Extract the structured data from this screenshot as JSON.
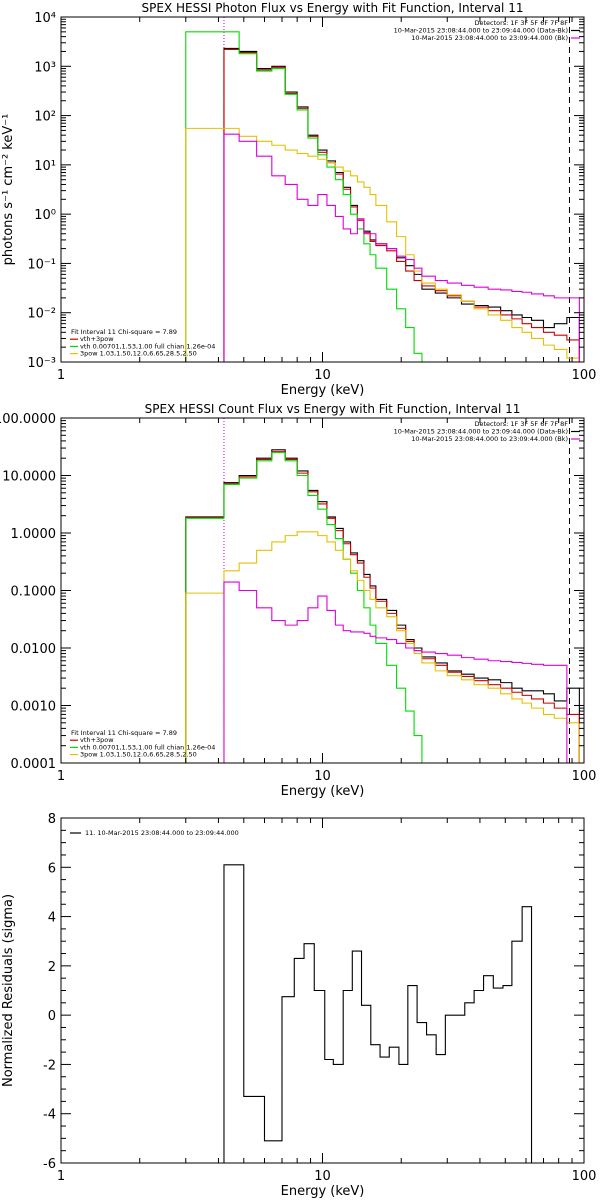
{
  "colors": {
    "total": "#000000",
    "vth_3pow": "#cc0000",
    "vth": "#00dd00",
    "3pow": "#e6c000",
    "background": "#dd00dd"
  },
  "chart_data": [
    {
      "type": "line",
      "title": "SPEX HESSI Photon Flux vs Energy with Fit Function, Interval 11",
      "xlabel": "Energy (keV)",
      "ylabel": "photons s⁻¹ cm⁻² keV⁻¹",
      "xscale": "log",
      "yscale": "log",
      "xlim": [
        1,
        100
      ],
      "ylim": [
        0.001,
        10000
      ],
      "xticks": [
        {
          "v": 1,
          "t": "1"
        },
        {
          "v": 10,
          "t": "10"
        },
        {
          "v": 100,
          "t": "100"
        }
      ],
      "yticks": [
        {
          "v": 0.001,
          "t": "10⁻³"
        },
        {
          "v": 0.01,
          "t": "10⁻²"
        },
        {
          "v": 0.1,
          "t": "10⁻¹"
        },
        {
          "v": 1,
          "t": "10⁰"
        },
        {
          "v": 10,
          "t": "10¹"
        },
        {
          "v": 100,
          "t": "10²"
        },
        {
          "v": 1000,
          "t": "10³"
        },
        {
          "v": 10000,
          "t": "10⁴"
        }
      ],
      "vlines": [
        {
          "x": 4.2,
          "style": "dotted",
          "color": "#000000"
        },
        {
          "x": 4.2,
          "style": "dotted",
          "color": "#dd00dd"
        },
        {
          "x": 88,
          "style": "dashed",
          "color": "#000000"
        }
      ],
      "legend_top": [
        "Detectors: 1F 3F 5F 6F 7F 8F",
        "10-Mar-2015 23:08:44.000 to 23:09:44.000 (Data-Bk)",
        "10-Mar-2015 23:08:44.000 to 23:09:44.000 (Bk)"
      ],
      "legend_bottom": [
        "Fit Interval 11   Chi-square = 7.89",
        "vth+3pow",
        "vth 0.00701,1.53,1.00  full chian 1.26e-04",
        "3pow 1.03,1.50,12.0,6.65,28.5,2.50"
      ],
      "edges": [
        3.0,
        4.2,
        4.8,
        5.6,
        6.4,
        7.2,
        8.0,
        8.8,
        9.6,
        10.4,
        11.2,
        12.0,
        12.8,
        13.6,
        14.4,
        15.2,
        16.0,
        17.6,
        19.2,
        20.8,
        22.4,
        24.0,
        27.0,
        30.0,
        34.0,
        38.0,
        43.0,
        48.0,
        53.0,
        58.0,
        63.0,
        70.0,
        77.0,
        86.0,
        96.0
      ],
      "series": [
        {
          "name": "Data-Bk",
          "color": "#000000",
          "start": 1,
          "values": [
            2300,
            2000,
            900,
            1000,
            300,
            150,
            40,
            20,
            12,
            7,
            3.5,
            1.5,
            0.8,
            0.45,
            0.3,
            0.25,
            0.2,
            0.13,
            0.09,
            0.06,
            0.03,
            0.025,
            0.02,
            0.015,
            0.014,
            0.013,
            0.011,
            0.009,
            0.008,
            0.007,
            0.005,
            0.006,
            0.008,
            0.001
          ]
        },
        {
          "name": "vth+3pow",
          "color": "#cc0000",
          "start": 1,
          "values": [
            2200,
            1900,
            850,
            950,
            280,
            140,
            38,
            18,
            11,
            6.5,
            3.2,
            1.4,
            0.75,
            0.42,
            0.28,
            0.23,
            0.18,
            0.11,
            0.07,
            0.045,
            0.035,
            0.028,
            0.022,
            0.017,
            0.013,
            0.011,
            0.009,
            0.0075,
            0.006,
            0.005,
            0.004,
            0.0035,
            0.0028,
            0.002
          ]
        },
        {
          "name": "vth",
          "color": "#00dd00",
          "start": 0,
          "values": [
            5000,
            5000,
            1800,
            800,
            900,
            270,
            130,
            35,
            16,
            9,
            5,
            2.5,
            1,
            0.5,
            0.25,
            0.15,
            0.08,
            0.03,
            0.012,
            0.005,
            0.0015,
            0.0001
          ]
        },
        {
          "name": "3pow",
          "color": "#e6c000",
          "start": 0,
          "values": [
            55,
            55,
            38,
            30,
            25,
            20,
            17,
            15,
            13,
            11,
            9,
            7.5,
            6,
            4.5,
            3.5,
            2.5,
            1.5,
            0.7,
            0.35,
            0.15,
            0.07,
            0.04,
            0.03,
            0.023,
            0.017,
            0.012,
            0.009,
            0.007,
            0.005,
            0.004,
            0.003,
            0.0022,
            0.0018,
            0.0012,
            0.0008
          ]
        },
        {
          "name": "Bk",
          "color": "#dd00dd",
          "start": 1,
          "values": [
            42,
            30,
            15,
            6,
            4,
            2,
            1.5,
            2.5,
            1.5,
            0.9,
            0.5,
            0.4,
            0.8,
            0.4,
            0.4,
            0.25,
            0.2,
            0.14,
            0.12,
            0.08,
            0.055,
            0.045,
            0.04,
            0.036,
            0.033,
            0.03,
            0.029,
            0.027,
            0.026,
            0.024,
            0.022,
            0.02,
            0.02,
            0.0005
          ]
        }
      ]
    },
    {
      "type": "line",
      "title": "SPEX HESSI Count Flux vs Energy with Fit Function, Interval 11",
      "xlabel": "Energy (keV)",
      "ylabel": "",
      "xscale": "log",
      "yscale": "log",
      "xlim": [
        1,
        100
      ],
      "ylim": [
        0.0001,
        100
      ],
      "xticks": [
        {
          "v": 1,
          "t": "1"
        },
        {
          "v": 10,
          "t": "10"
        },
        {
          "v": 100,
          "t": "100"
        }
      ],
      "yticks": [
        {
          "v": 0.0001,
          "t": "0.0001"
        },
        {
          "v": 0.001,
          "t": "0.0010"
        },
        {
          "v": 0.01,
          "t": "0.0100"
        },
        {
          "v": 0.1,
          "t": "0.1000"
        },
        {
          "v": 1,
          "t": "1.0000"
        },
        {
          "v": 10,
          "t": "10.0000"
        },
        {
          "v": 100,
          "t": "100.0000"
        }
      ],
      "vlines": [
        {
          "x": 4.2,
          "style": "dotted",
          "color": "#000000"
        },
        {
          "x": 4.2,
          "style": "dotted",
          "color": "#dd00dd"
        },
        {
          "x": 88,
          "style": "dashed",
          "color": "#000000"
        }
      ],
      "legend_top": [
        "Detectors: 1F 3F 5F 6F 7F 8F",
        "10-Mar-2015 23:08:44.000 to 23:09:44.000 (Data-Bk)",
        "10-Mar-2015 23:08:44.000 to 23:09:44.000 (Bk)"
      ],
      "legend_bottom": [
        "Fit Interval 11   Chi-square = 7.89",
        "vth+3pow",
        "vth 0.00701,1.53,1.00  full chian 1.26e-04",
        "3pow 1.03,1.50,12.0,6.65,28.5,2.50"
      ],
      "edges": [
        3.0,
        4.2,
        4.8,
        5.6,
        6.4,
        7.2,
        8.0,
        8.8,
        9.6,
        10.4,
        11.2,
        12.0,
        12.8,
        13.6,
        14.4,
        15.2,
        16.0,
        17.6,
        19.2,
        20.8,
        22.4,
        24.0,
        27.0,
        30.0,
        34.0,
        38.0,
        43.0,
        48.0,
        53.0,
        58.0,
        63.0,
        70.0,
        77.0,
        86.0,
        96.0
      ],
      "series": [
        {
          "name": "Data-Bk",
          "color": "#000000",
          "start": 0,
          "values": [
            1.9,
            7.5,
            10,
            20,
            28,
            20,
            12,
            5.5,
            3.5,
            1.9,
            1.2,
            0.7,
            0.45,
            0.33,
            0.19,
            0.12,
            0.07,
            0.045,
            0.025,
            0.014,
            0.01,
            0.007,
            0.0055,
            0.004,
            0.0035,
            0.003,
            0.0028,
            0.0025,
            0.002,
            0.0018,
            0.0018,
            0.0016,
            0.0012,
            0.002
          ]
        },
        {
          "name": "vth+3pow",
          "color": "#cc0000",
          "start": 0,
          "values": [
            1.85,
            7.2,
            9.5,
            19,
            26,
            19,
            11,
            5.2,
            3.2,
            1.8,
            1.1,
            0.65,
            0.42,
            0.3,
            0.17,
            0.11,
            0.065,
            0.04,
            0.022,
            0.013,
            0.009,
            0.0065,
            0.005,
            0.0038,
            0.0032,
            0.0027,
            0.0023,
            0.002,
            0.0017,
            0.0015,
            0.0013,
            0.0011,
            0.0009,
            0.0007
          ]
        },
        {
          "name": "vth",
          "color": "#00dd00",
          "start": 0,
          "values": [
            1.8,
            7,
            9,
            18,
            25,
            18,
            10,
            4.5,
            2.6,
            1.4,
            0.8,
            0.35,
            0.2,
            0.1,
            0.05,
            0.025,
            0.012,
            0.005,
            0.002,
            0.0008,
            0.0003,
            0.0001
          ]
        },
        {
          "name": "3pow",
          "color": "#e6c000",
          "start": 0,
          "values": [
            0.09,
            0.22,
            0.3,
            0.5,
            0.7,
            0.9,
            1.05,
            1.05,
            0.9,
            0.7,
            0.5,
            0.35,
            0.22,
            0.15,
            0.1,
            0.07,
            0.05,
            0.035,
            0.02,
            0.012,
            0.008,
            0.0055,
            0.004,
            0.0033,
            0.0028,
            0.0023,
            0.002,
            0.0016,
            0.0013,
            0.0011,
            0.0009,
            0.0007,
            0.0006,
            0.0005
          ]
        },
        {
          "name": "Bk",
          "color": "#dd00dd",
          "start": 1,
          "values": [
            0.14,
            0.1,
            0.05,
            0.03,
            0.025,
            0.03,
            0.05,
            0.08,
            0.045,
            0.025,
            0.02,
            0.019,
            0.019,
            0.018,
            0.016,
            0.015,
            0.014,
            0.012,
            0.01,
            0.009,
            0.0085,
            0.008,
            0.0075,
            0.0068,
            0.0064,
            0.006,
            0.0058,
            0.0056,
            0.0054,
            0.0052,
            0.005,
            0.005,
            0.0001
          ]
        }
      ]
    },
    {
      "type": "line",
      "title": "",
      "xlabel": "Energy (keV)",
      "ylabel": "Normalized Residuals (sigma)",
      "xscale": "log",
      "yscale": "linear",
      "xlim": [
        1,
        100
      ],
      "ylim": [
        -6,
        8
      ],
      "xticks": [
        {
          "v": 1,
          "t": "1"
        },
        {
          "v": 10,
          "t": "10"
        },
        {
          "v": 100,
          "t": "100"
        }
      ],
      "yticks": [
        {
          "v": -6,
          "t": "-6"
        },
        {
          "v": -4,
          "t": "-4"
        },
        {
          "v": -2,
          "t": "-2"
        },
        {
          "v": 0,
          "t": "0"
        },
        {
          "v": 2,
          "t": "2"
        },
        {
          "v": 4,
          "t": "4"
        },
        {
          "v": 6,
          "t": "6"
        },
        {
          "v": 8,
          "t": "8"
        }
      ],
      "vlines": [],
      "legend_top": [],
      "legend_bottom": [],
      "legend_inner": "11. 10-Mar-2015 23:08:44.000 to 23:09:44.000",
      "edges": [
        4.2,
        5.0,
        6.0,
        7.0,
        7.8,
        8.5,
        9.3,
        10.2,
        11.0,
        12.0,
        13.0,
        14.1,
        15.3,
        16.6,
        18.0,
        19.6,
        21.2,
        23.0,
        25.0,
        27.2,
        29.5,
        32.0,
        35.0,
        38.0,
        41.3,
        45.0,
        49.0,
        53.0,
        58.0,
        63.0,
        69.0,
        75.0,
        82.0,
        90.0
      ],
      "series": [
        {
          "name": "",
          "color": "#000000",
          "start": 0,
          "close_ends": true,
          "values": [
            6.1,
            -3.3,
            -5.1,
            0.75,
            2.3,
            2.9,
            1.0,
            -1.8,
            -2.0,
            1.0,
            2.6,
            0.4,
            -1.2,
            -1.7,
            -1.3,
            -2.0,
            1.2,
            -0.3,
            -0.8,
            -1.6,
            0.0,
            0.0,
            0.5,
            1.0,
            1.6,
            1.1,
            1.2,
            3.0,
            4.4
          ]
        }
      ]
    }
  ]
}
